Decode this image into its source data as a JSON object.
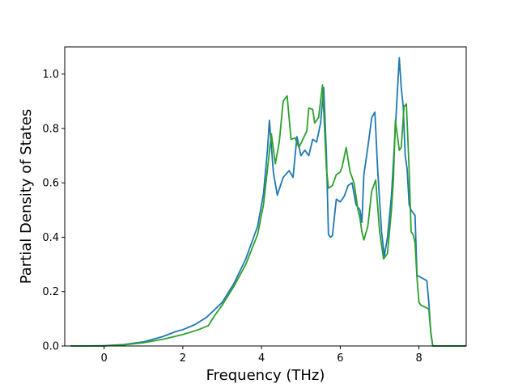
{
  "chart_data": {
    "type": "line",
    "title": "",
    "xlabel": "Frequency (THz)",
    "ylabel": "Partial Density of States",
    "xlim": [
      -1.0,
      9.2
    ],
    "ylim": [
      0.0,
      1.1
    ],
    "xticks": [
      0,
      2,
      4,
      6,
      8
    ],
    "xtick_labels": [
      "0",
      "2",
      "4",
      "6",
      "8"
    ],
    "yticks": [
      0.0,
      0.2,
      0.4,
      0.6,
      0.8,
      1.0
    ],
    "ytick_labels": [
      "0.0",
      "0.2",
      "0.4",
      "0.6",
      "0.8",
      "1.0"
    ],
    "grid": false,
    "legend": "none",
    "colors": {
      "series1": "#1f77b4",
      "series2": "#2ca02c"
    },
    "series": [
      {
        "color": "#1f77b4",
        "x": [
          -0.85,
          -0.5,
          0.0,
          0.5,
          1.0,
          1.5,
          1.8,
          2.0,
          2.3,
          2.6,
          3.0,
          3.3,
          3.6,
          3.9,
          4.05,
          4.15,
          4.2,
          4.3,
          4.4,
          4.55,
          4.7,
          4.8,
          4.9,
          5.0,
          5.1,
          5.2,
          5.3,
          5.4,
          5.5,
          5.58,
          5.65,
          5.7,
          5.75,
          5.8,
          5.9,
          6.0,
          6.1,
          6.2,
          6.3,
          6.4,
          6.5,
          6.55,
          6.6,
          6.7,
          6.8,
          6.88,
          6.95,
          7.05,
          7.12,
          7.2,
          7.3,
          7.4,
          7.5,
          7.55,
          7.6,
          7.65,
          7.7,
          7.75,
          7.8,
          7.9,
          7.95,
          8.2,
          8.25,
          8.3,
          8.35,
          8.5,
          9.2
        ],
        "y": [
          0.0,
          0.0,
          0.001,
          0.005,
          0.015,
          0.035,
          0.052,
          0.06,
          0.078,
          0.105,
          0.16,
          0.23,
          0.32,
          0.44,
          0.56,
          0.72,
          0.83,
          0.64,
          0.555,
          0.62,
          0.645,
          0.62,
          0.77,
          0.7,
          0.72,
          0.7,
          0.76,
          0.75,
          0.82,
          0.95,
          0.7,
          0.41,
          0.4,
          0.405,
          0.54,
          0.53,
          0.55,
          0.59,
          0.6,
          0.52,
          0.5,
          0.455,
          0.63,
          0.73,
          0.84,
          0.86,
          0.65,
          0.42,
          0.33,
          0.4,
          0.55,
          0.8,
          1.06,
          0.95,
          0.88,
          0.7,
          0.65,
          0.52,
          0.5,
          0.48,
          0.26,
          0.24,
          0.16,
          0.05,
          0.0,
          0.0,
          0.0
        ]
      },
      {
        "color": "#2ca02c",
        "x": [
          -0.85,
          -0.5,
          0.0,
          0.5,
          1.0,
          1.5,
          2.0,
          2.4,
          2.65,
          2.8,
          3.0,
          3.3,
          3.6,
          3.9,
          4.05,
          4.15,
          4.25,
          4.35,
          4.45,
          4.55,
          4.6,
          4.65,
          4.75,
          4.85,
          4.95,
          5.05,
          5.15,
          5.2,
          5.3,
          5.35,
          5.45,
          5.55,
          5.65,
          5.7,
          5.8,
          5.9,
          6.0,
          6.05,
          6.15,
          6.25,
          6.35,
          6.45,
          6.5,
          6.55,
          6.6,
          6.7,
          6.8,
          6.9,
          7.0,
          7.1,
          7.2,
          7.3,
          7.35,
          7.4,
          7.5,
          7.55,
          7.62,
          7.68,
          7.75,
          7.8,
          7.85,
          7.9,
          7.95,
          8.0,
          8.05,
          8.2,
          8.25,
          8.3,
          8.35,
          8.5,
          9.2
        ],
        "y": [
          0.0,
          0.0,
          0.0,
          0.004,
          0.012,
          0.025,
          0.042,
          0.06,
          0.075,
          0.11,
          0.15,
          0.22,
          0.3,
          0.41,
          0.52,
          0.65,
          0.78,
          0.67,
          0.75,
          0.9,
          0.91,
          0.92,
          0.76,
          0.765,
          0.73,
          0.76,
          0.79,
          0.875,
          0.87,
          0.82,
          0.84,
          0.96,
          0.65,
          0.58,
          0.59,
          0.63,
          0.64,
          0.66,
          0.73,
          0.64,
          0.6,
          0.5,
          0.47,
          0.42,
          0.39,
          0.44,
          0.57,
          0.61,
          0.42,
          0.32,
          0.34,
          0.5,
          0.61,
          0.83,
          0.72,
          0.73,
          0.88,
          0.89,
          0.65,
          0.42,
          0.41,
          0.38,
          0.25,
          0.16,
          0.15,
          0.14,
          0.135,
          0.05,
          0.0,
          0.0,
          0.0
        ]
      }
    ]
  }
}
